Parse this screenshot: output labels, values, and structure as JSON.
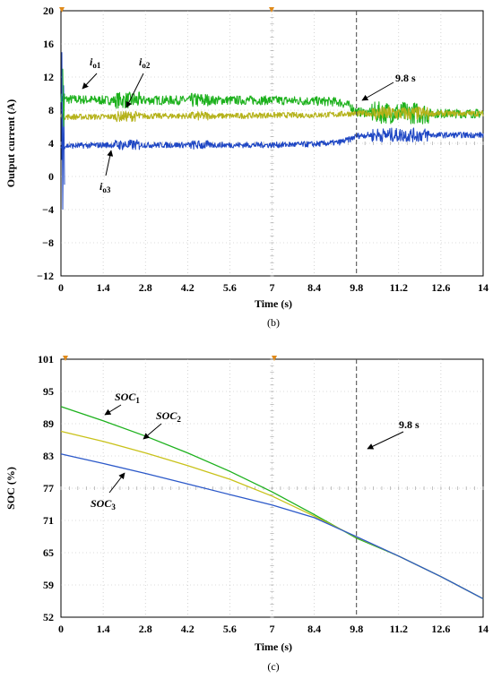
{
  "chart_data": [
    {
      "type": "line",
      "panel": "top",
      "caption": "(b)",
      "xlabel": "Time (s)",
      "ylabel": "Output current (A)",
      "xlim": [
        0,
        14
      ],
      "ylim": [
        -12,
        20
      ],
      "xticks": [
        "0",
        "1.4",
        "2.8",
        "4.2",
        "5.6",
        "7",
        "8.4",
        "9.8",
        "11.2",
        "12.6",
        "14"
      ],
      "yticks": [
        "20",
        "16",
        "12",
        "8",
        "4",
        "0",
        "−4",
        "−8",
        "−12"
      ],
      "grid": true,
      "marker_line": {
        "x": 9.8,
        "label": "9.8 s"
      },
      "series": [
        {
          "name": "io1",
          "label_main": "i",
          "label_sub": "o1",
          "color": "#1db11d",
          "x": [
            0,
            0.15,
            0.4,
            1.4,
            2.8,
            4.2,
            5.6,
            7,
            8.4,
            9.2,
            9.6,
            9.8,
            10.2,
            11.2,
            12.6,
            14
          ],
          "y": [
            9.5,
            9.3,
            9.3,
            9.2,
            9.2,
            9.2,
            9.2,
            9.2,
            9.1,
            9.0,
            8.5,
            7.8,
            7.7,
            7.7,
            7.6,
            7.6
          ]
        },
        {
          "name": "io2",
          "label_main": "i",
          "label_sub": "o2",
          "color": "#b5b21a",
          "x": [
            0,
            0.15,
            0.4,
            1.4,
            2.8,
            4.2,
            5.6,
            7,
            8.4,
            9.2,
            9.6,
            9.8,
            10.2,
            11.2,
            12.6,
            14
          ],
          "y": [
            7.3,
            7.2,
            7.2,
            7.2,
            7.3,
            7.3,
            7.3,
            7.4,
            7.4,
            7.5,
            7.6,
            7.6,
            7.6,
            7.6,
            7.6,
            7.6
          ]
        },
        {
          "name": "io3",
          "label_main": "i",
          "label_sub": "o3",
          "color": "#1f47c4",
          "x": [
            0,
            0.15,
            0.4,
            1.4,
            2.8,
            4.2,
            5.6,
            7,
            8.4,
            9.2,
            9.6,
            9.8,
            10.2,
            11.2,
            12.6,
            14
          ],
          "y": [
            3.5,
            3.7,
            3.7,
            3.8,
            3.8,
            3.8,
            3.8,
            3.8,
            3.9,
            4.1,
            4.5,
            4.9,
            5.0,
            5.0,
            5.0,
            5.0
          ]
        }
      ]
    },
    {
      "type": "line",
      "panel": "bottom",
      "caption": "(c)",
      "xlabel": "Time (s)",
      "ylabel": "SOC (%)",
      "xlim": [
        0,
        14
      ],
      "ylim": [
        52,
        101
      ],
      "xticks": [
        "0",
        "1.4",
        "2.8",
        "4.2",
        "5.6",
        "7",
        "8.4",
        "9.8",
        "11.2",
        "12.6",
        "14"
      ],
      "yticks": [
        "101",
        "95",
        "89",
        "83",
        "77",
        "71",
        "65",
        "59",
        "52"
      ],
      "grid": true,
      "marker_line": {
        "x": 9.8,
        "label": "9.8 s"
      },
      "series": [
        {
          "name": "SOC1",
          "label_main": "SOC",
          "label_sub": "1",
          "color": "#1db11d",
          "x": [
            0,
            1.4,
            2.8,
            4.2,
            5.6,
            7,
            8.4,
            9.8,
            11.2,
            12.6,
            14
          ],
          "y": [
            92,
            89.3,
            86.4,
            83.2,
            79.7,
            75.8,
            71.5,
            67,
            63.6,
            59.7,
            55.5
          ]
        },
        {
          "name": "SOC2",
          "label_main": "SOC",
          "label_sub": "2",
          "color": "#c9c21a",
          "x": [
            0,
            1.4,
            2.8,
            4.2,
            5.6,
            7,
            8.4,
            9.8,
            11.2,
            12.6,
            14
          ],
          "y": [
            87.3,
            85.4,
            83.2,
            80.8,
            78.2,
            75.0,
            71.2,
            67.2,
            63.6,
            59.7,
            55.5
          ]
        },
        {
          "name": "SOC3",
          "label_main": "SOC",
          "label_sub": "3",
          "color": "#2c59c9",
          "x": [
            0,
            1.4,
            2.8,
            4.2,
            5.6,
            7,
            8.4,
            9.8,
            11.2,
            12.6,
            14
          ],
          "y": [
            83,
            81.2,
            79.3,
            77.3,
            75.3,
            73.3,
            70.9,
            67.3,
            63.6,
            59.7,
            55.5
          ]
        }
      ]
    }
  ]
}
